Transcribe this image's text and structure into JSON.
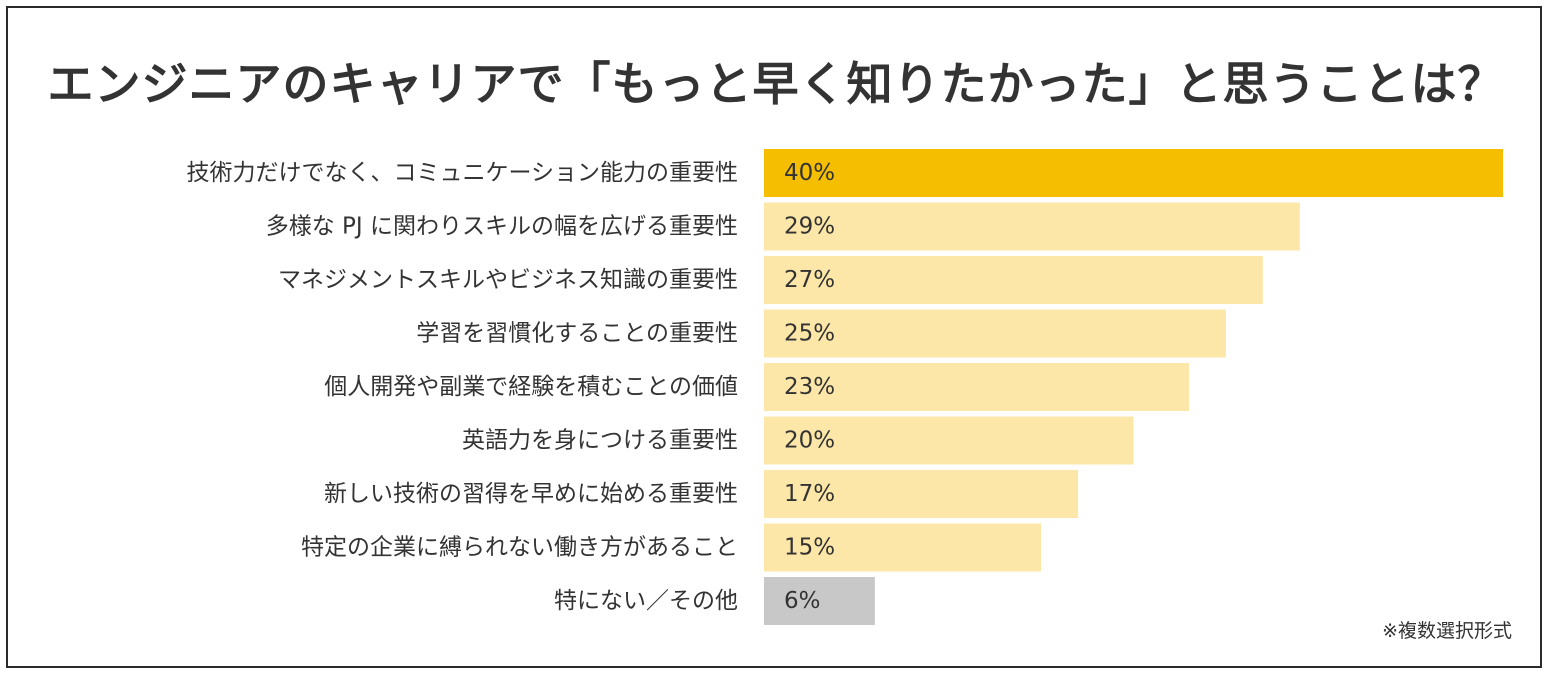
{
  "title": "エンジニアのキャリアで「もっと早く知りたかった」と思うことは？",
  "note": "※複数選択形式",
  "colors": {
    "highlight": "#F5BE00",
    "normal": "#FCE7A8",
    "other": "#C8C8C8",
    "text": "#333333"
  },
  "chart_data": {
    "type": "bar",
    "orientation": "horizontal",
    "title": "エンジニアのキャリアで「もっと早く知りたかった」と思うことは？",
    "categories": [
      "技術力だけでなく、コミュニケーション能力の重要性",
      "多様な PJ に関わりスキルの幅を広げる重要性",
      "マネジメントスキルやビジネス知識の重要性",
      "学習を習慣化することの重要性",
      "個人開発や副業で経験を積むことの価値",
      "英語力を身につける重要性",
      "新しい技術の習得を早めに始める重要性",
      "特定の企業に縛られない働き方があること",
      "特にない／その他"
    ],
    "values": [
      40,
      29,
      27,
      25,
      23,
      20,
      17,
      15,
      6
    ],
    "value_labels": [
      "40%",
      "29%",
      "27%",
      "25%",
      "23%",
      "20%",
      "17%",
      "15%",
      "6%"
    ],
    "bar_styles": [
      "highlight",
      "normal",
      "normal",
      "normal",
      "normal",
      "normal",
      "normal",
      "normal",
      "other"
    ],
    "xlim": [
      0,
      40
    ],
    "unit": "%",
    "grid": false,
    "legend": "none"
  }
}
